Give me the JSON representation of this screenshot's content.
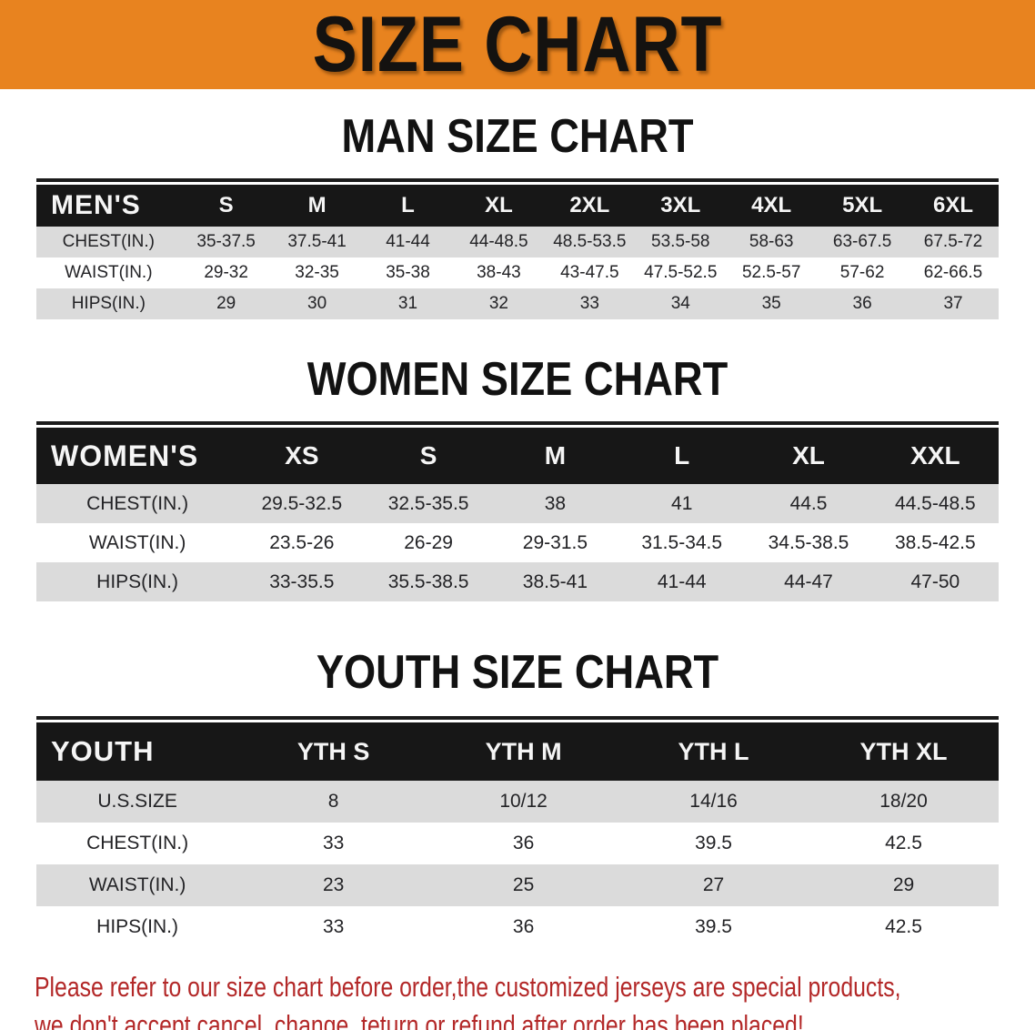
{
  "banner": {
    "title": "SIZE CHART",
    "bg_color": "#E8831F",
    "text_color": "#141210"
  },
  "sections": {
    "men": {
      "heading": "MAN SIZE CHART"
    },
    "women": {
      "heading": "WOMEN SIZE CHART"
    },
    "youth": {
      "heading": "YOUTH SIZE CHART"
    }
  },
  "men_table": {
    "header": [
      "MEN'S",
      "S",
      "M",
      "L",
      "XL",
      "2XL",
      "3XL",
      "4XL",
      "5XL",
      "6XL"
    ],
    "rows": [
      [
        "CHEST(IN.)",
        "35-37.5",
        "37.5-41",
        "41-44",
        "44-48.5",
        "48.5-53.5",
        "53.5-58",
        "58-63",
        "63-67.5",
        "67.5-72"
      ],
      [
        "WAIST(IN.)",
        "29-32",
        "32-35",
        "35-38",
        "38-43",
        "43-47.5",
        "47.5-52.5",
        "52.5-57",
        "57-62",
        "62-66.5"
      ],
      [
        "HIPS(IN.)",
        "29",
        "30",
        "31",
        "32",
        "33",
        "34",
        "35",
        "36",
        "37"
      ]
    ]
  },
  "women_table": {
    "header": [
      "WOMEN'S",
      "XS",
      "S",
      "M",
      "L",
      "XL",
      "XXL"
    ],
    "rows": [
      [
        "CHEST(IN.)",
        "29.5-32.5",
        "32.5-35.5",
        "38",
        "41",
        "44.5",
        "44.5-48.5"
      ],
      [
        "WAIST(IN.)",
        "23.5-26",
        "26-29",
        "29-31.5",
        "31.5-34.5",
        "34.5-38.5",
        "38.5-42.5"
      ],
      [
        "HIPS(IN.)",
        "33-35.5",
        "35.5-38.5",
        "38.5-41",
        "41-44",
        "44-47",
        "47-50"
      ]
    ]
  },
  "youth_table": {
    "header": [
      "YOUTH",
      "YTH S",
      "YTH M",
      "YTH L",
      "YTH XL"
    ],
    "rows": [
      [
        "U.S.SIZE",
        "8",
        "10/12",
        "14/16",
        "18/20"
      ],
      [
        "CHEST(IN.)",
        "33",
        "36",
        "39.5",
        "42.5"
      ],
      [
        "WAIST(IN.)",
        "23",
        "25",
        "27",
        "29"
      ],
      [
        "HIPS(IN.)",
        "33",
        "36",
        "39.5",
        "42.5"
      ]
    ]
  },
  "disclaimer": {
    "line1": "Please refer to our size chart before order,the customized jerseys are special products,",
    "line2": "we don't accept cancel, change, teturn or refund after order has been placed!",
    "color": "#B32828"
  },
  "colors": {
    "banner_orange": "#E8831F",
    "table_header_black": "#171717",
    "stripe_gray": "#DBDBDB",
    "disclaimer_red": "#B32828"
  }
}
